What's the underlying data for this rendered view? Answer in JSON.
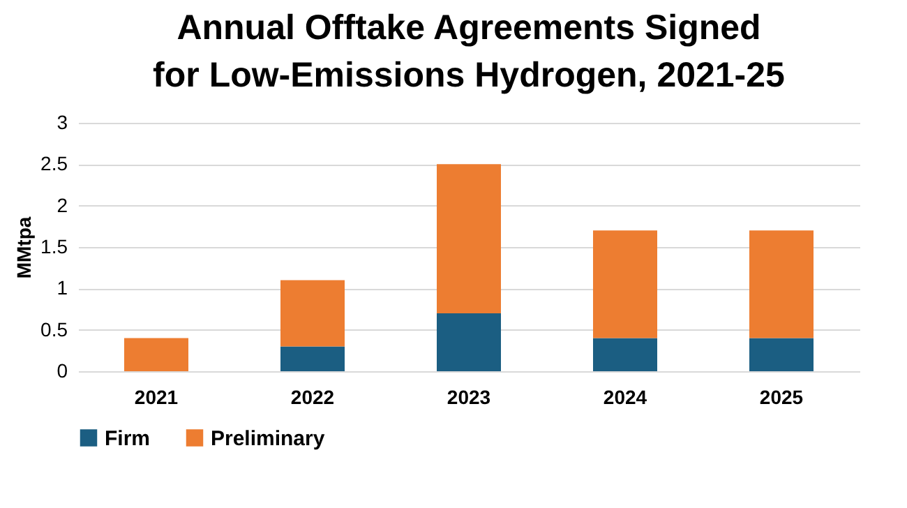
{
  "chart_data": {
    "type": "bar",
    "title": [
      "Annual Offtake Agreements Signed",
      "for Low-Emissions Hydrogen, 2021-25"
    ],
    "ylabel": "MMtpa",
    "categories": [
      "2021",
      "2022",
      "2023",
      "2024",
      "2025"
    ],
    "series": [
      {
        "name": "Firm",
        "color": "#1b5e82",
        "values": [
          0,
          0.3,
          0.7,
          0.4,
          0.4
        ]
      },
      {
        "name": "Preliminary",
        "color": "#ed7d31",
        "values": [
          0.4,
          0.8,
          1.8,
          1.3,
          1.3
        ]
      }
    ],
    "stacked": true,
    "ylim": [
      0,
      3
    ],
    "yticks": [
      0,
      0.5,
      1,
      1.5,
      2,
      2.5,
      3
    ],
    "grid": "y",
    "legend": "bottom"
  }
}
